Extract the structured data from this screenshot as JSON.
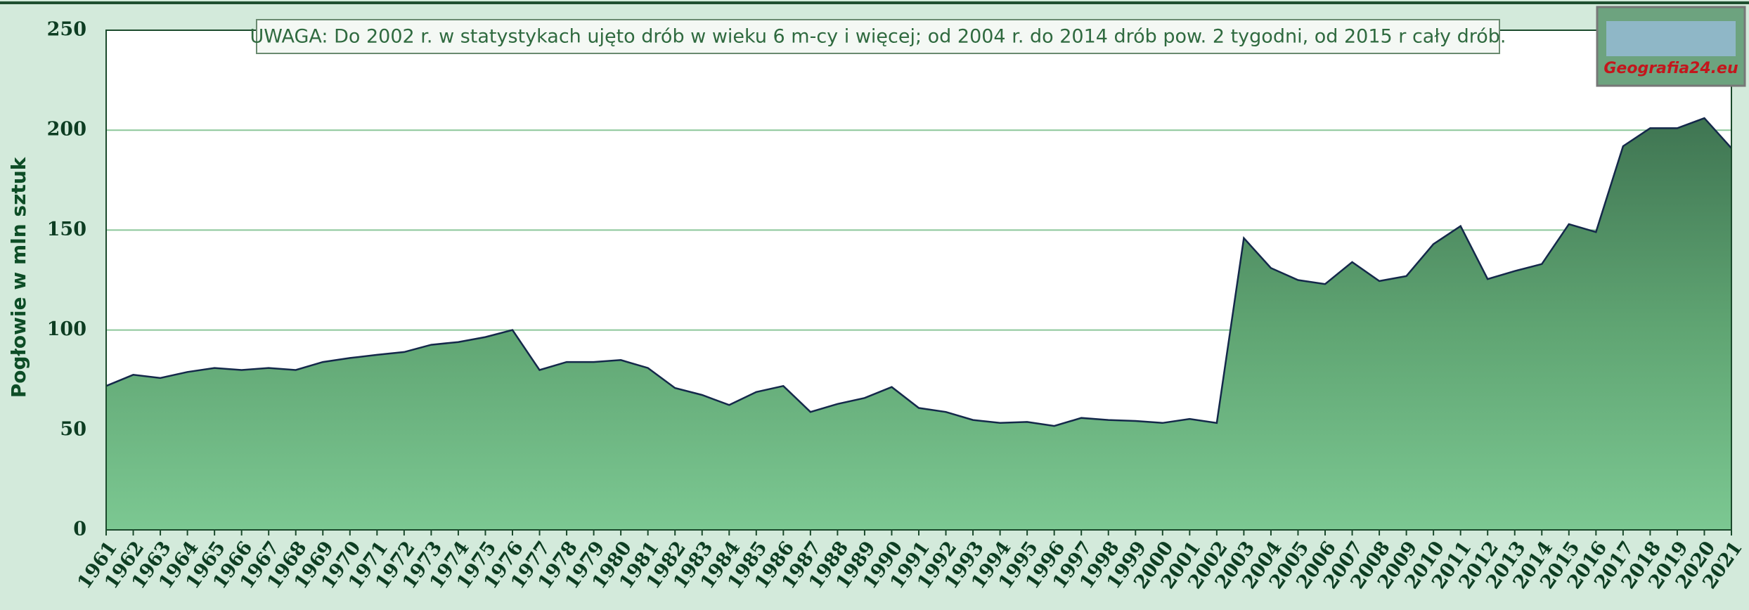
{
  "chart_data": {
    "type": "area",
    "ylabel": "Pogłowie w mln sztuk",
    "annotation": "UWAGA: Do 2002 r. w statystykach ujęto drób w wieku 6 m-cy i więcej; od 2004 r. do 2014 drób pow. 2 tygodni, od 2015 r cały drób.",
    "logo": "Geografia24.eu",
    "categories": [
      "1961",
      "1962",
      "1963",
      "1964",
      "1965",
      "1966",
      "1967",
      "1968",
      "1969",
      "1970",
      "1971",
      "1972",
      "1973",
      "1974",
      "1975",
      "1976",
      "1977",
      "1978",
      "1979",
      "1980",
      "1981",
      "1982",
      "1983",
      "1984",
      "1985",
      "1986",
      "1987",
      "1988",
      "1989",
      "1990",
      "1991",
      "1992",
      "1993",
      "1994",
      "1995",
      "1996",
      "1997",
      "1998",
      "1999",
      "2000",
      "2001",
      "2002",
      "2003",
      "2004",
      "2005",
      "2006",
      "2007",
      "2008",
      "2009",
      "2010",
      "2011",
      "2012",
      "2013",
      "2014",
      "2015",
      "2016",
      "2017",
      "2018",
      "2019",
      "2020",
      "2021"
    ],
    "values": [
      72,
      77.6,
      76,
      79,
      81,
      80,
      81,
      80,
      84,
      86,
      87.6,
      89,
      92.6,
      94,
      96.5,
      100,
      80,
      84,
      84,
      85,
      81,
      71,
      67.5,
      62.5,
      69,
      72,
      59,
      63,
      66,
      71.5,
      61,
      59,
      55,
      53.5,
      54,
      52,
      56,
      55,
      54.5,
      53.5,
      55.5,
      53.5,
      146,
      131,
      125,
      123,
      134,
      124.5,
      127,
      143,
      152,
      125.5,
      129.5,
      133,
      153,
      149,
      192,
      201,
      201,
      206,
      191
    ],
    "color": "#4f9a68",
    "ylim": [
      0,
      250
    ],
    "yticks": [
      0,
      50,
      100,
      150,
      200,
      250
    ],
    "grid": true
  }
}
